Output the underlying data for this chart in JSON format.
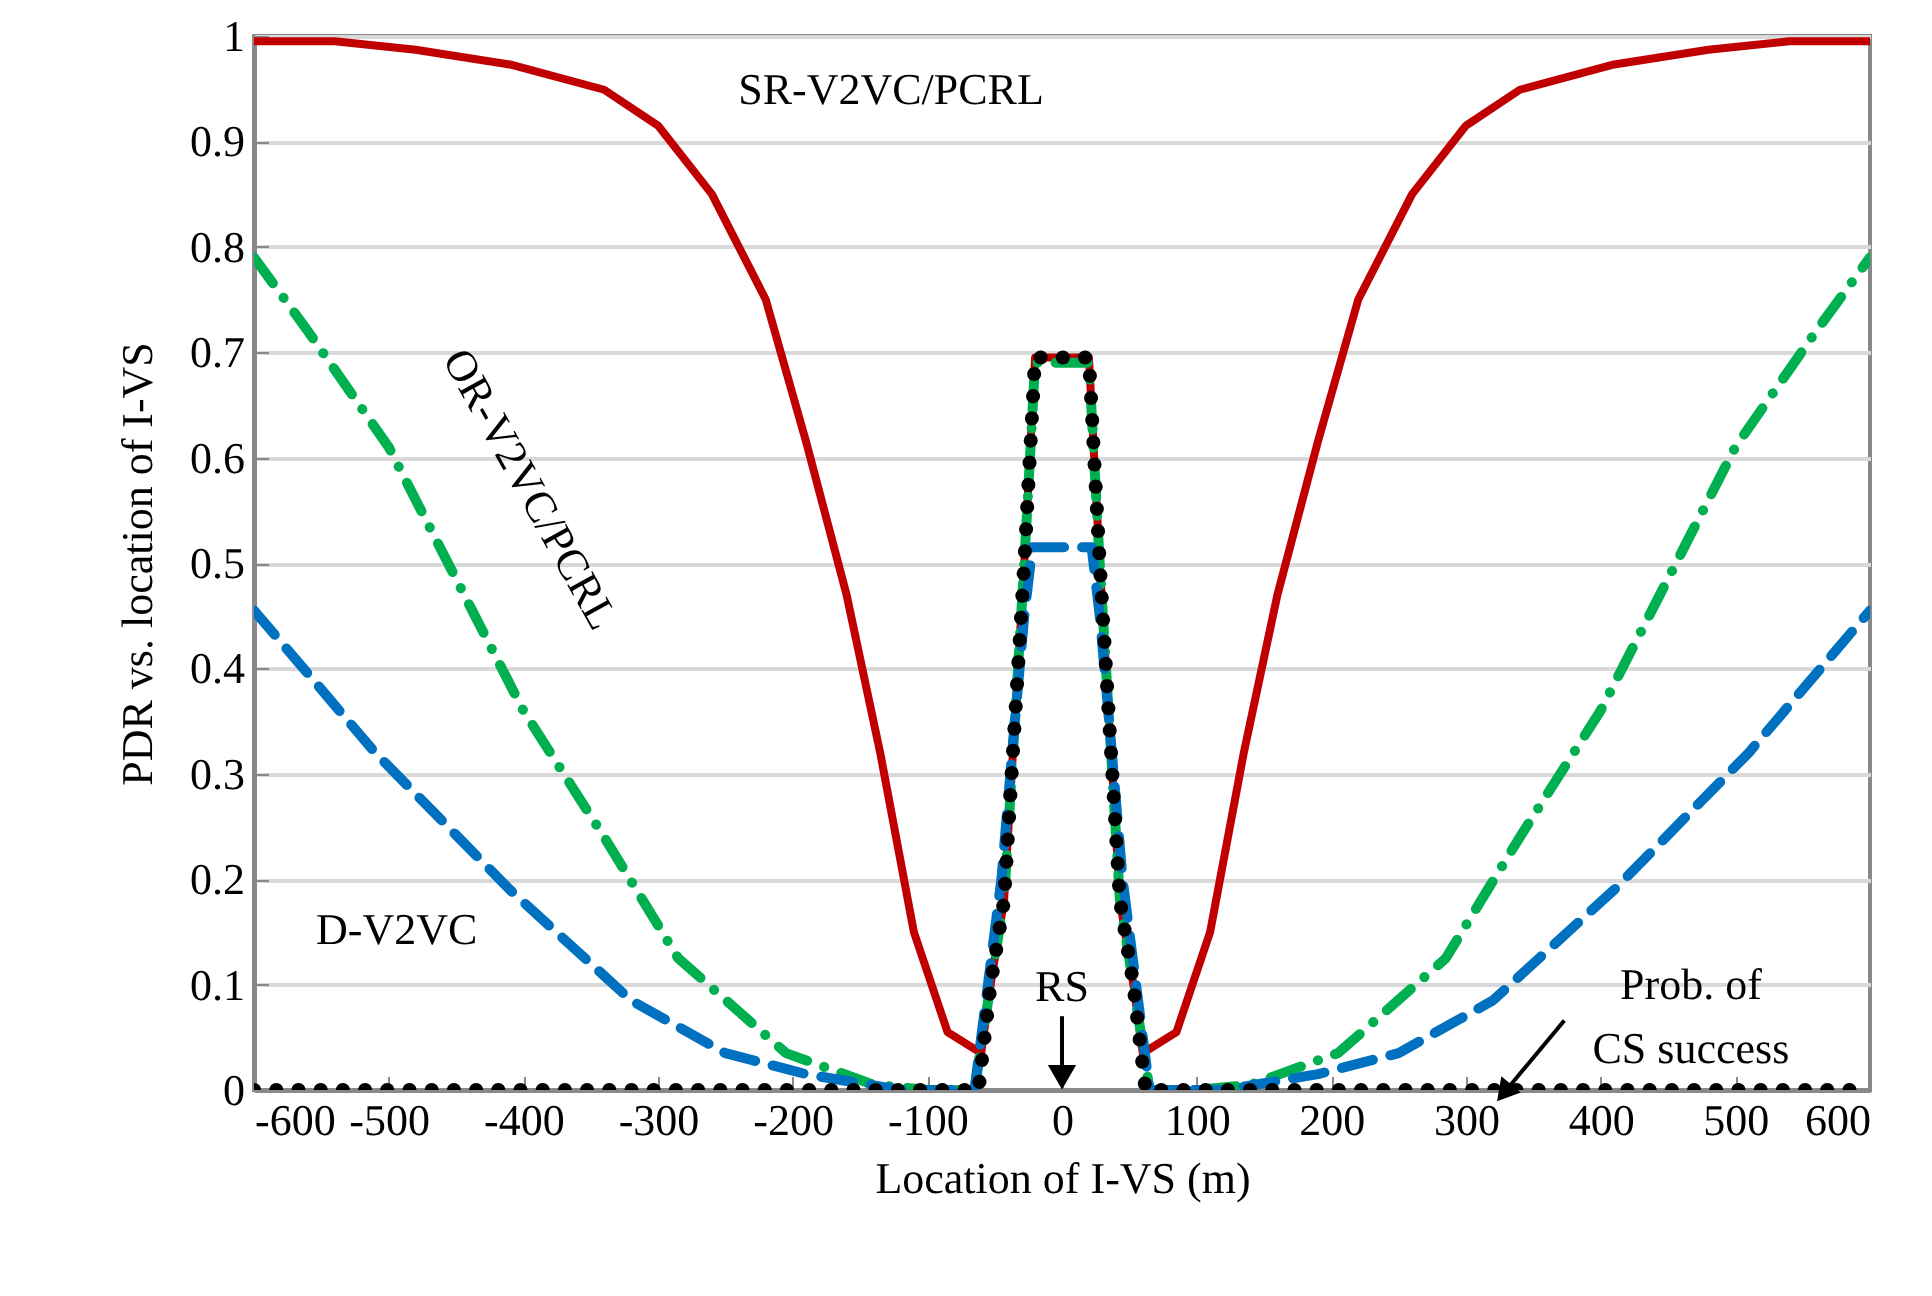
{
  "chart_data": {
    "type": "line",
    "xlabel": "Location of  I-VS (m)",
    "ylabel": "PDR vs. location of I-VS",
    "xlim": [
      -600,
      600
    ],
    "ylim": [
      0,
      1
    ],
    "xticks": [
      -600,
      -500,
      -400,
      -300,
      -200,
      -100,
      0,
      100,
      200,
      300,
      400,
      500,
      600
    ],
    "yticks": [
      0,
      0.1,
      0.2,
      0.3,
      0.4,
      0.5,
      0.6,
      0.7,
      0.8,
      0.9,
      1
    ],
    "grid": "y",
    "annotations": [
      "RS"
    ],
    "series": [
      {
        "name": "SR-V2VC/PCRL",
        "color": "#c00000",
        "line_style": "solid",
        "x": [
          -600,
          -540,
          -480,
          -410,
          -340,
          -300,
          -260,
          -220,
          -190,
          -160,
          -135,
          -110,
          -85,
          -60,
          -53,
          -43,
          -28,
          -20,
          0,
          20,
          28,
          43,
          53,
          60,
          85,
          110,
          135,
          160,
          190,
          220,
          260,
          300,
          340,
          410,
          480,
          540,
          600
        ],
        "values": [
          0.995,
          0.995,
          0.987,
          0.973,
          0.949,
          0.915,
          0.85,
          0.75,
          0.615,
          0.47,
          0.32,
          0.15,
          0.055,
          0.035,
          0.1,
          0.18,
          0.5,
          0.695,
          0.695,
          0.695,
          0.5,
          0.18,
          0.1,
          0.035,
          0.055,
          0.15,
          0.32,
          0.47,
          0.615,
          0.75,
          0.85,
          0.915,
          0.949,
          0.973,
          0.987,
          0.995,
          0.995
        ]
      },
      {
        "name": "OR-V2VC/PCRL",
        "color": "#00b050",
        "line_style": "dashdot",
        "x": [
          -600,
          -560,
          -500,
          -450,
          -400,
          -340,
          -285,
          -205,
          -140,
          -100,
          -65,
          -53,
          -43,
          -28,
          -20,
          0,
          20,
          28,
          43,
          53,
          65,
          100,
          140,
          205,
          285,
          340,
          400,
          450,
          500,
          560,
          600
        ],
        "values": [
          0.79,
          0.72,
          0.61,
          0.485,
          0.36,
          0.24,
          0.125,
          0.035,
          0.005,
          0,
          0,
          0.1,
          0.18,
          0.5,
          0.69,
          0.69,
          0.69,
          0.5,
          0.18,
          0.1,
          0,
          0,
          0.005,
          0.035,
          0.125,
          0.24,
          0.36,
          0.485,
          0.61,
          0.72,
          0.79
        ]
      },
      {
        "name": "D-V2VC",
        "color": "#0070c0",
        "line_style": "dashed",
        "x": [
          -600,
          -510,
          -410,
          -320,
          -250,
          -190,
          -120,
          -65,
          -55,
          -45,
          -35,
          -28,
          -22,
          0,
          22,
          28,
          35,
          45,
          55,
          65,
          120,
          190,
          250,
          320,
          410,
          510,
          600
        ],
        "values": [
          0.455,
          0.32,
          0.19,
          0.085,
          0.035,
          0.015,
          0,
          0,
          0.1,
          0.2,
          0.35,
          0.45,
          0.515,
          0.515,
          0.515,
          0.45,
          0.35,
          0.2,
          0.1,
          0,
          0,
          0.015,
          0.035,
          0.085,
          0.19,
          0.32,
          0.455
        ]
      },
      {
        "name": "Prob. of\nCS success",
        "color": "#000000",
        "line_style": "dotted",
        "x": [
          -600,
          -62,
          -53,
          -43,
          -28,
          -20,
          0,
          20,
          28,
          43,
          53,
          62,
          600
        ],
        "values": [
          0,
          0,
          0.1,
          0.18,
          0.5,
          0.695,
          0.695,
          0.695,
          0.5,
          0.18,
          0.1,
          0,
          0
        ]
      }
    ]
  }
}
